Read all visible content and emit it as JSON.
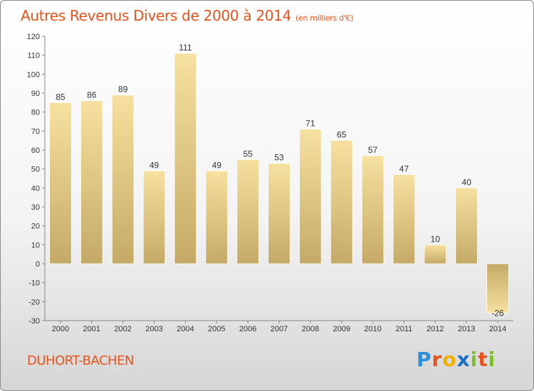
{
  "header": {
    "title": "Autres Revenus Divers de 2000 à 2014",
    "unit": "(en milliers d'€)"
  },
  "footer": {
    "commune": "DUHORT-BACHEN",
    "brand": "Proxiti"
  },
  "colors": {
    "title": "#e8541c",
    "bar_light": "#f7e1a0",
    "bar_dark": "#c4aa66"
  },
  "chart_data": {
    "type": "bar",
    "categories": [
      "2000",
      "2001",
      "2002",
      "2003",
      "2004",
      "2005",
      "2006",
      "2007",
      "2008",
      "2009",
      "2010",
      "2011",
      "2012",
      "2013",
      "2014"
    ],
    "values": [
      85,
      86,
      89,
      49,
      111,
      49,
      55,
      53,
      71,
      65,
      57,
      47,
      10,
      40,
      -26
    ],
    "ylim": [
      -30,
      120
    ],
    "yticks": [
      -30,
      -20,
      -10,
      0,
      10,
      20,
      30,
      40,
      50,
      60,
      70,
      80,
      90,
      100,
      110,
      120
    ],
    "grid": false,
    "data_labels": true
  }
}
